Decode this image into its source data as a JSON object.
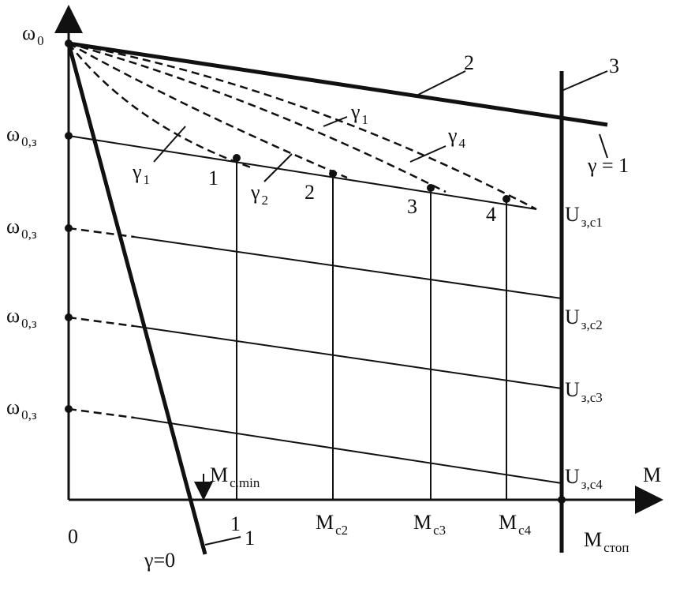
{
  "labels": [
    {
      "text": "ω",
      "sub": "0"
    },
    {
      "text": "ω",
      "sub": "0,з"
    },
    {
      "text": "ω",
      "sub": "0,з"
    },
    {
      "text": "ω",
      "sub": "0,з"
    },
    {
      "text": "ω",
      "sub": "0,з"
    },
    {
      "text": "2"
    },
    {
      "text": "3"
    },
    {
      "text": "γ",
      "sub": "1"
    },
    {
      "text": "γ",
      "sub": "4"
    },
    {
      "text": "γ = 1"
    },
    {
      "text": "γ",
      "sub": "1"
    },
    {
      "text": "1"
    },
    {
      "text": "γ",
      "sub": "2"
    },
    {
      "text": "2"
    },
    {
      "text": "3"
    },
    {
      "text": "4"
    },
    {
      "text": "U",
      "sub": "з,c1"
    },
    {
      "text": "U",
      "sub": "з,c2"
    },
    {
      "text": "U",
      "sub": "з,c3"
    },
    {
      "text": "U",
      "sub": "з,c4"
    },
    {
      "text": "M"
    },
    {
      "text": "M",
      "sub": "c.min"
    },
    {
      "text": "0"
    },
    {
      "text": "1"
    },
    {
      "text": "M",
      "sub": "c2"
    },
    {
      "text": "M",
      "sub": "c3"
    },
    {
      "text": "M",
      "sub": "c4"
    },
    {
      "text": "M",
      "sub": "стоп"
    },
    {
      "text": "γ=0"
    },
    {
      "text": "1"
    }
  ]
}
